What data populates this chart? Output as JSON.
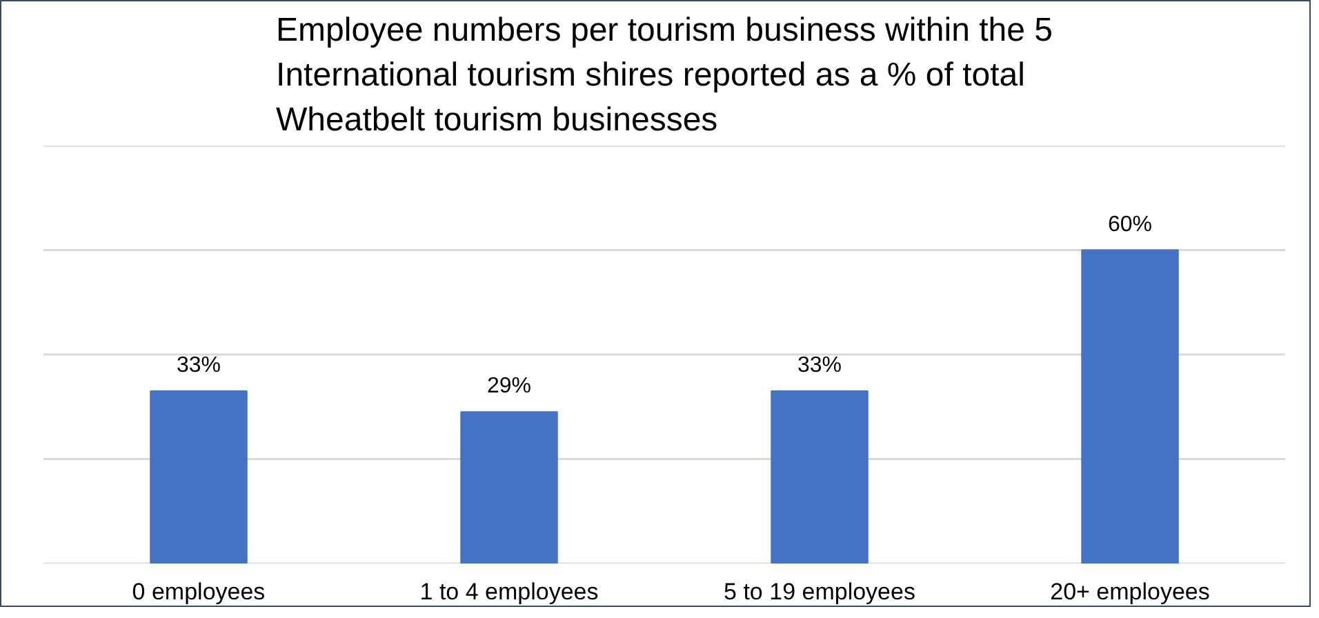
{
  "chart_data": {
    "type": "bar",
    "title": "Employee numbers per tourism business within the 5 International tourism shires reported as a % of total Wheatbelt tourism businesses",
    "categories": [
      "0 employees",
      "1 to 4 employees",
      "5 to 19 employees",
      "20+ employees"
    ],
    "values": [
      33,
      29,
      33,
      60
    ],
    "value_labels": [
      "33%",
      "29%",
      "33%",
      "60%"
    ],
    "color": "#4472c4",
    "ylim": [
      0,
      80
    ],
    "yticks": [
      {
        "value": 0,
        "label": null
      },
      {
        "value": 20,
        "label": null
      },
      {
        "value": 40,
        "label": null
      },
      {
        "value": 60,
        "label": null
      },
      {
        "value": 80,
        "label": null
      }
    ],
    "tick_labels": "x",
    "grid": "y"
  }
}
